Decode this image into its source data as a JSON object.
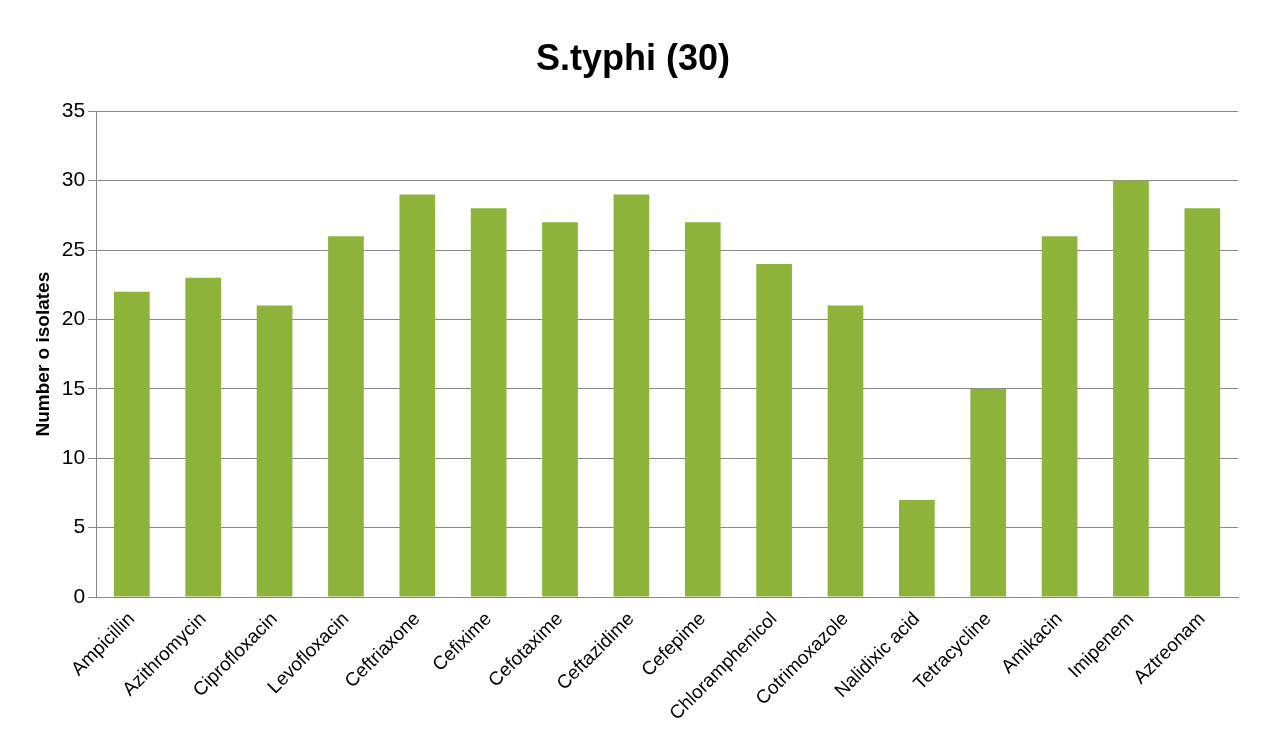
{
  "chart_data": {
    "type": "bar",
    "title": "S.typhi (30)",
    "ylabel": "Number o isolates",
    "categories": [
      "Ampicillin",
      "Azithromycin",
      "Ciprofloxacin",
      "Levofloxacin",
      "Ceftriaxone",
      "Cefixime",
      "Cefotaxime",
      "Ceftazidime",
      "Cefepime",
      "Chloramphenicol",
      "Cotrimoxazole",
      "Nalidixic acid",
      "Tetracycline",
      "Amikacin",
      "Imipenem",
      "Aztreonam"
    ],
    "values": [
      22,
      23,
      21,
      26,
      29,
      28,
      27,
      29,
      27,
      24,
      21,
      7,
      15,
      26,
      30,
      28
    ],
    "color": "#8db33a",
    "ylim": [
      0,
      35
    ],
    "yticks": [
      0,
      5,
      10,
      15,
      20,
      25,
      30,
      35
    ],
    "grid": "y",
    "legend": false
  }
}
